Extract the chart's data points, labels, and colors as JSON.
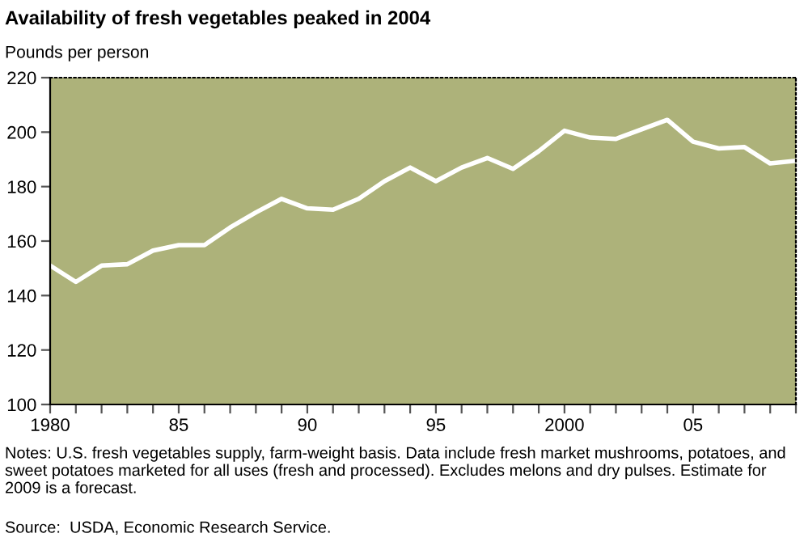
{
  "chart_data": {
    "type": "line",
    "title": "Availability of fresh vegetables peaked in 2004",
    "ylabel": "Pounds per person",
    "x": [
      1980,
      1981,
      1982,
      1983,
      1984,
      1985,
      1986,
      1987,
      1988,
      1989,
      1990,
      1991,
      1992,
      1993,
      1994,
      1995,
      1996,
      1997,
      1998,
      1999,
      2000,
      2001,
      2002,
      2003,
      2004,
      2005,
      2006,
      2007,
      2008,
      2009
    ],
    "series": [
      {
        "color": "#ffffff",
        "values": [
          151,
          145,
          151,
          151.5,
          156.5,
          158.5,
          158.5,
          165,
          170.5,
          175.5,
          172,
          171.5,
          175.5,
          182,
          187,
          182,
          187,
          190.5,
          186.5,
          193,
          200.5,
          198,
          197.5,
          201,
          204.5,
          196.5,
          194,
          194.5,
          188.5,
          189.5
        ]
      }
    ],
    "xlim": [
      1980,
      2009
    ],
    "xticks": [
      1980,
      {
        "value": 1981,
        "label": null
      },
      {
        "value": 1982,
        "label": null
      },
      {
        "value": 1983,
        "label": null
      },
      {
        "value": 1984,
        "label": null
      },
      {
        "value": 1985,
        "label": "85"
      },
      {
        "value": 1986,
        "label": null
      },
      {
        "value": 1987,
        "label": null
      },
      {
        "value": 1988,
        "label": null
      },
      {
        "value": 1989,
        "label": null
      },
      {
        "value": 1990,
        "label": "90"
      },
      {
        "value": 1991,
        "label": null
      },
      {
        "value": 1992,
        "label": null
      },
      {
        "value": 1993,
        "label": null
      },
      {
        "value": 1994,
        "label": null
      },
      {
        "value": 1995,
        "label": "95"
      },
      {
        "value": 1996,
        "label": null
      },
      {
        "value": 1997,
        "label": null
      },
      {
        "value": 1998,
        "label": null
      },
      {
        "value": 1999,
        "label": null
      },
      2000,
      {
        "value": 2001,
        "label": null
      },
      {
        "value": 2002,
        "label": null
      },
      {
        "value": 2003,
        "label": null
      },
      {
        "value": 2004,
        "label": null
      },
      {
        "value": 2005,
        "label": "05"
      },
      {
        "value": 2006,
        "label": null
      },
      {
        "value": 2007,
        "label": null
      },
      {
        "value": 2008,
        "label": null
      },
      {
        "value": 2009,
        "label": null
      }
    ],
    "ylim": [
      100,
      220
    ],
    "yticks": [
      100,
      120,
      140,
      160,
      180,
      200,
      220
    ],
    "grid": false,
    "legend": false,
    "annotations": [
      "Notes: U.S. fresh vegetables supply, farm-weight basis. Data include fresh market mushrooms, potatoes, and sweet potatoes marketed for all uses (fresh and processed). Excludes melons and dry pulses. Estimate for 2009 is a forecast.",
      "Source:  USDA, Economic Research Service."
    ]
  }
}
